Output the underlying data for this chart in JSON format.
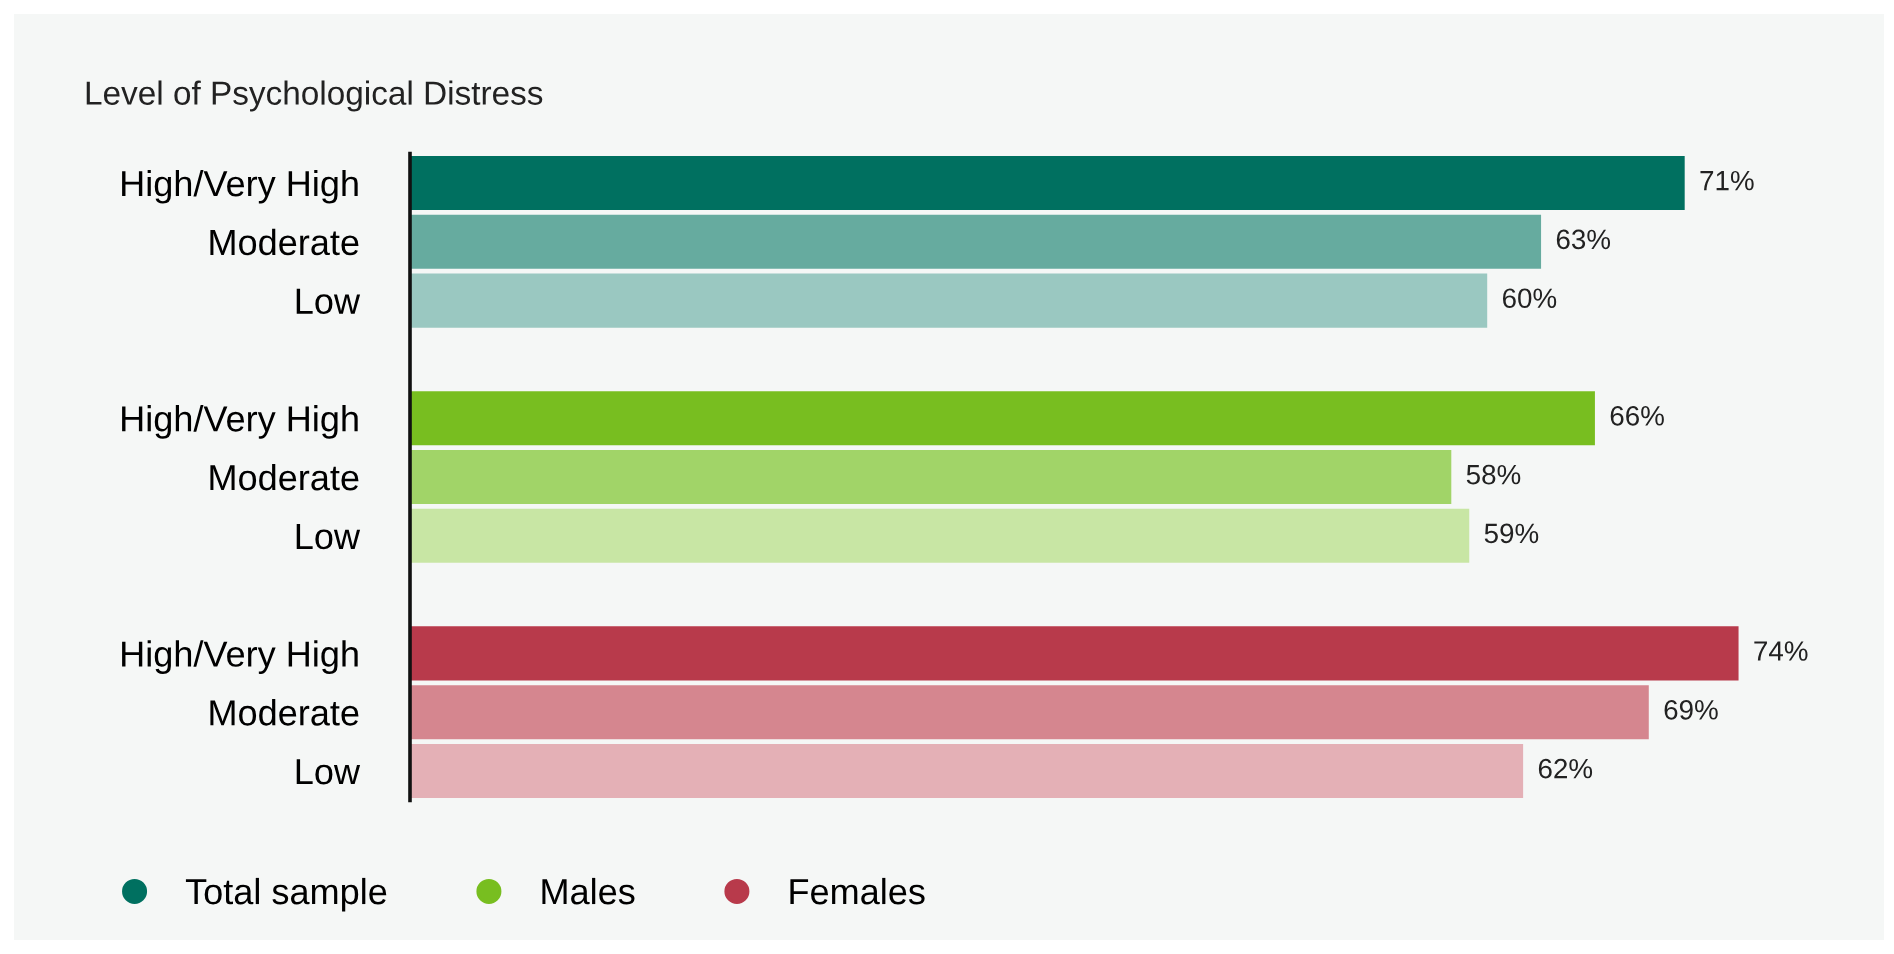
{
  "chart_data": {
    "type": "bar",
    "orientation": "horizontal",
    "title": "Level of Psychological Distress",
    "categories": [
      "High/Very High",
      "Moderate",
      "Low",
      null,
      "High/Very High",
      "Moderate",
      "Low",
      null,
      "High/Very High",
      "Moderate",
      "Low"
    ],
    "series": [
      {
        "name": "Total sample",
        "color": "#007060",
        "colors": [
          "#007060",
          "#66ab9f",
          "#9ac8c1",
          null,
          null,
          null,
          null,
          null,
          null,
          null,
          null
        ],
        "values": [
          71,
          63,
          60,
          null,
          null,
          null,
          null,
          null,
          null,
          null,
          null
        ],
        "value_labels": [
          "71%",
          "63%",
          "60%",
          null,
          null,
          null,
          null,
          null,
          null,
          null,
          null
        ]
      },
      {
        "name": "Males",
        "color": "#78be20",
        "colors": [
          null,
          null,
          null,
          null,
          "#78be20",
          "#a1d468",
          "#c8e6a4",
          null,
          null,
          null,
          null
        ],
        "values": [
          null,
          null,
          null,
          null,
          66,
          58,
          59,
          null,
          null,
          null,
          null
        ],
        "value_labels": [
          null,
          null,
          null,
          null,
          "66%",
          "58%",
          "59%",
          null,
          null,
          null,
          null
        ]
      },
      {
        "name": "Females",
        "color": "#b83a4b",
        "colors": [
          null,
          null,
          null,
          null,
          null,
          null,
          null,
          null,
          "#b83a4b",
          "#d5868f",
          "#e4b0b6"
        ],
        "values": [
          null,
          null,
          null,
          null,
          null,
          null,
          null,
          null,
          74,
          69,
          62
        ],
        "value_labels": [
          null,
          null,
          null,
          null,
          null,
          null,
          null,
          null,
          "74%",
          "69%",
          "62%"
        ]
      }
    ],
    "grid": false,
    "legend": "bottom left"
  }
}
